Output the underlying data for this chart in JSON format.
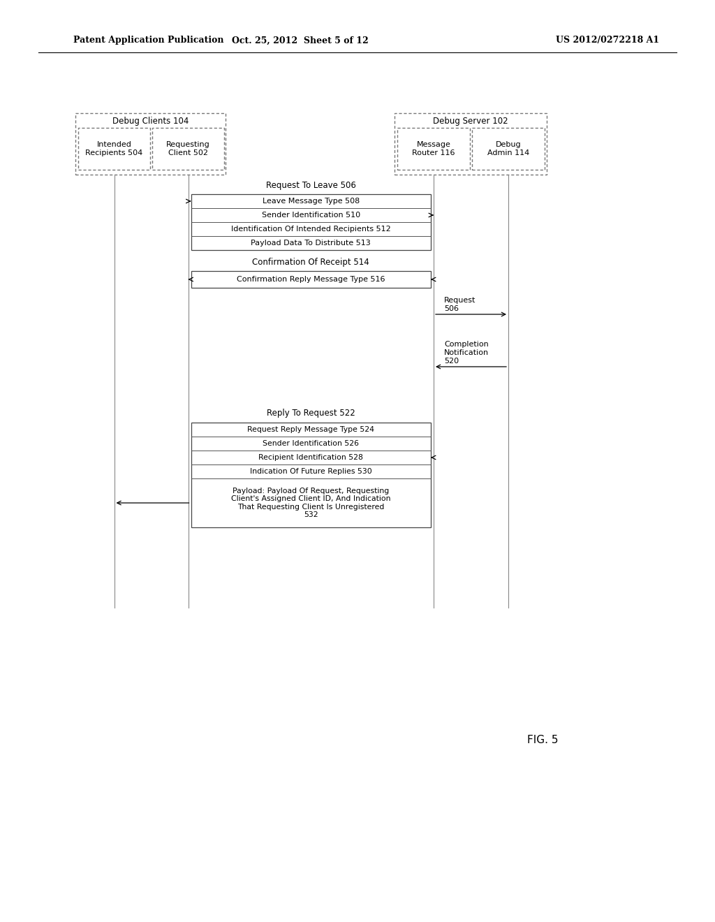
{
  "header_left": "Patent Application Publication",
  "header_mid": "Oct. 25, 2012  Sheet 5 of 12",
  "header_right": "US 2012/0272218 A1",
  "fig_label": "FIG. 5",
  "debug_clients_label": "Debug Clients 104",
  "intended_recipients_label": "Intended\nRecipients 504",
  "requesting_client_label": "Requesting\nClient 502",
  "debug_server_label": "Debug Server 102",
  "message_router_label": "Message\nRouter 116",
  "debug_admin_label": "Debug\nAdmin 114",
  "request_to_leave_label": "Request To Leave 506",
  "msg1_lines": [
    "Leave Message Type 508",
    "Sender Identification 510",
    "Identification Of Intended Recipients 512",
    "Payload Data To Distribute 513"
  ],
  "confirmation_label": "Confirmation Of Receipt 514",
  "msg2_lines": [
    "Confirmation Reply Message Type 516"
  ],
  "request_506_label": "Request\n506",
  "completion_label": "Completion\nNotification\n520",
  "reply_to_request_label": "Reply To Request 522",
  "msg3_lines": [
    "Request Reply Message Type 524",
    "Sender Identification 526",
    "Recipient Identification 528",
    "Indication Of Future Replies 530",
    "Payload: Payload Of Request, Requesting\nClient's Assigned Client ID, And Indication\nThat Requesting Client Is Unregistered\n532"
  ]
}
